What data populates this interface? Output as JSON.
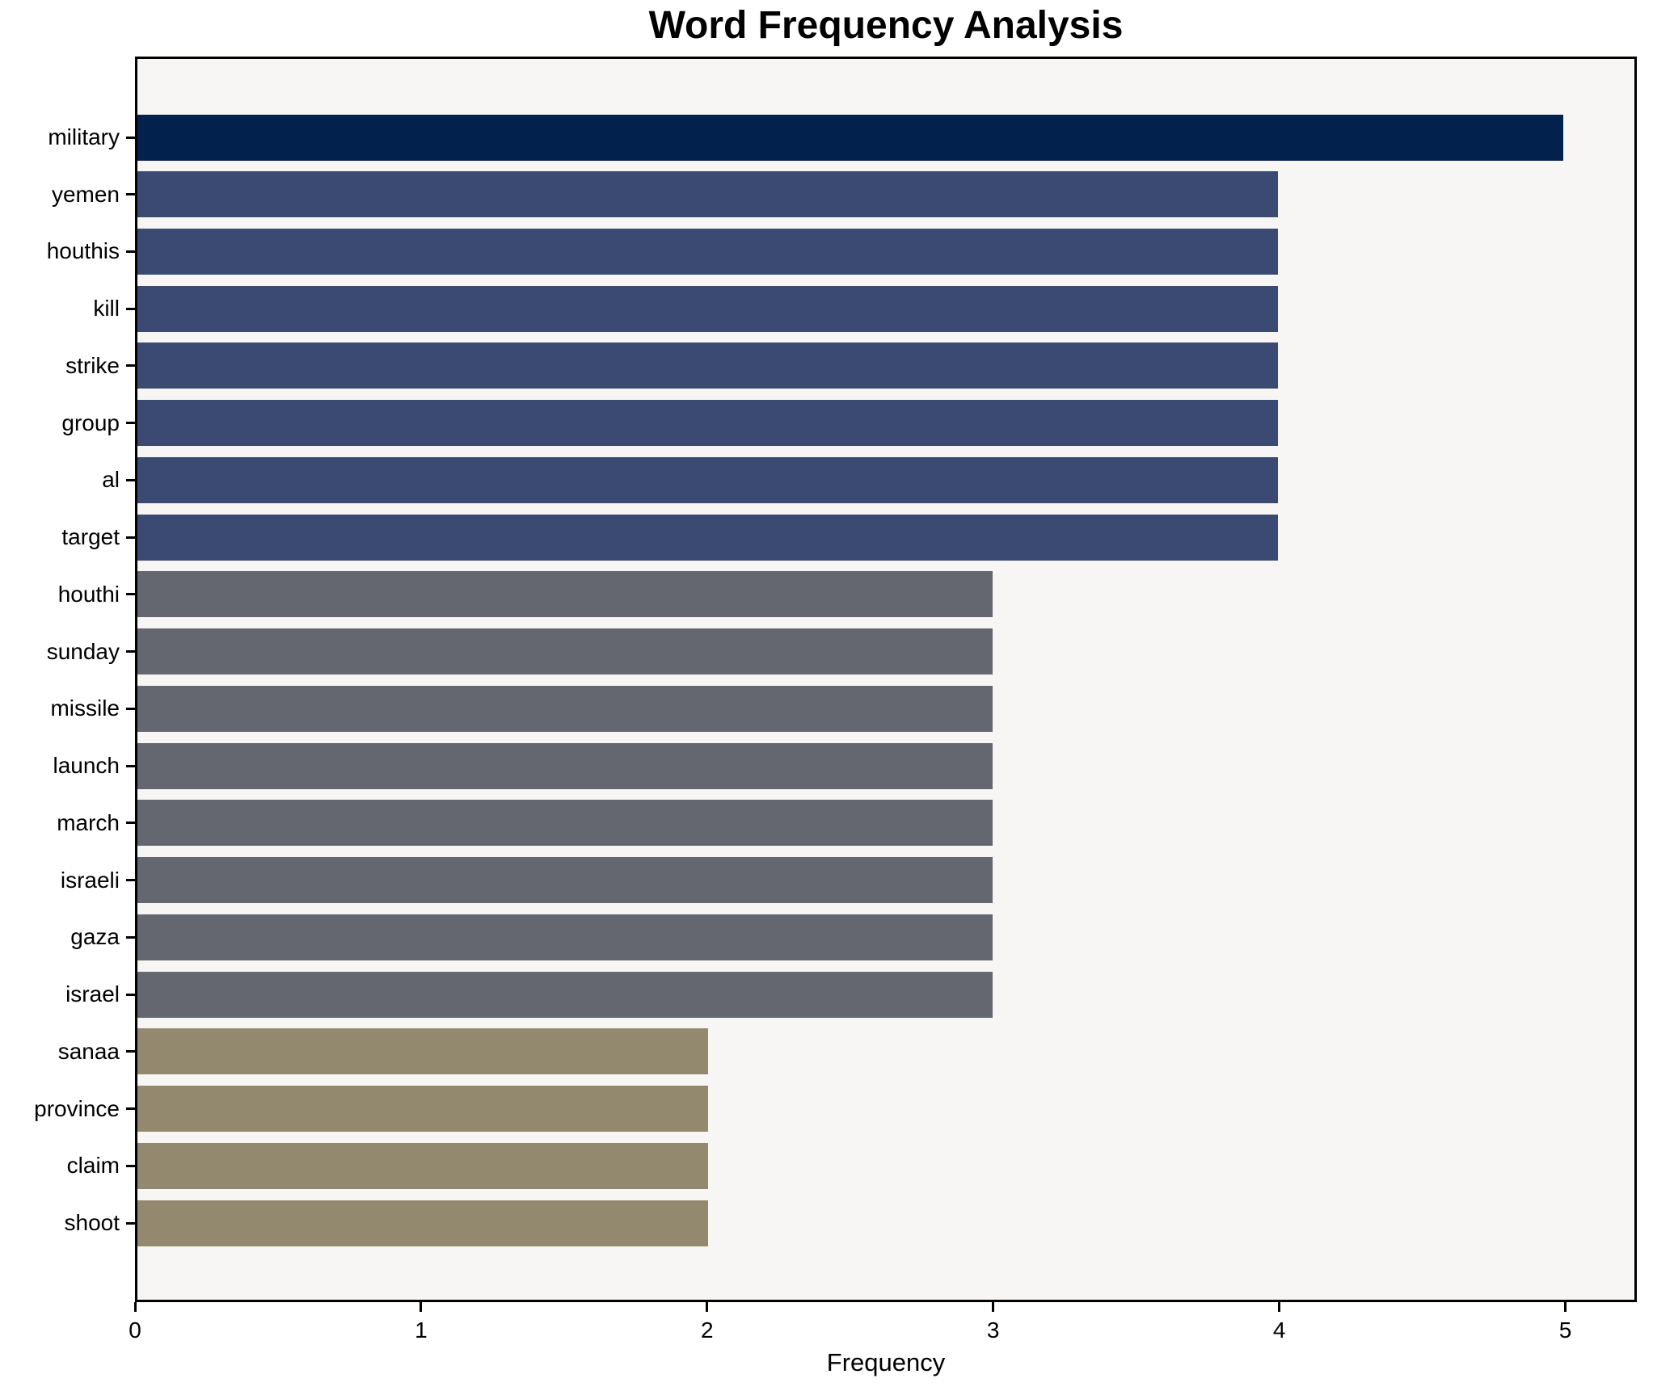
{
  "chart_data": {
    "type": "bar",
    "orientation": "horizontal",
    "title": "Word Frequency Analysis",
    "xlabel": "Frequency",
    "ylabel": "",
    "categories": [
      "military",
      "yemen",
      "houthis",
      "kill",
      "strike",
      "group",
      "al",
      "target",
      "houthi",
      "sunday",
      "missile",
      "launch",
      "march",
      "israeli",
      "gaza",
      "israel",
      "sanaa",
      "province",
      "claim",
      "shoot"
    ],
    "values": [
      5,
      4,
      4,
      4,
      4,
      4,
      4,
      4,
      3,
      3,
      3,
      3,
      3,
      3,
      3,
      3,
      2,
      2,
      2,
      2
    ],
    "bar_colors": [
      "#03214d",
      "#3a4a72",
      "#3a4a72",
      "#3a4a72",
      "#3a4a72",
      "#3a4a72",
      "#3a4a72",
      "#3a4a72",
      "#64676f",
      "#64676f",
      "#64676f",
      "#64676f",
      "#64676f",
      "#64676f",
      "#64676f",
      "#64676f",
      "#93896f",
      "#93896f",
      "#93896f",
      "#93896f"
    ],
    "xticks": [
      0,
      1,
      2,
      3,
      4,
      5
    ],
    "xlim": [
      0,
      5.25
    ],
    "grid": false,
    "legend_position": "none",
    "plot_background": "#f7f6f4",
    "figure_background": "#ffffff",
    "spine_color": "#000000",
    "text_color": "#000000"
  }
}
